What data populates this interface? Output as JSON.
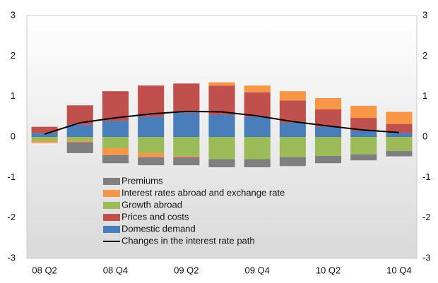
{
  "chart_data": {
    "type": "bar",
    "stacked": true,
    "categories": [
      "08 Q2",
      null,
      "08 Q4",
      null,
      "09 Q2",
      null,
      "09 Q4",
      null,
      "10 Q2",
      null,
      "10 Q4"
    ],
    "series": [
      {
        "name": "Domestic demand",
        "color": "#4a7ebb",
        "values": [
          0.1,
          0.3,
          0.4,
          0.5,
          0.6,
          0.55,
          0.5,
          0.35,
          0.25,
          0.15,
          0.1
        ]
      },
      {
        "name": "Prices and costs",
        "color": "#c0504d",
        "values": [
          0.15,
          0.48,
          0.73,
          0.77,
          0.72,
          0.72,
          0.6,
          0.55,
          0.43,
          0.32,
          0.22
        ]
      },
      {
        "name": "Growth abroad",
        "color": "#9bbb59",
        "values": [
          -0.1,
          -0.1,
          -0.28,
          -0.4,
          -0.47,
          -0.55,
          -0.55,
          -0.5,
          -0.47,
          -0.43,
          -0.35
        ]
      },
      {
        "name": "Interest rates abroad and exchange rate",
        "color": "#f79646",
        "values": [
          -0.05,
          -0.03,
          -0.17,
          -0.1,
          -0.03,
          0.08,
          0.17,
          0.23,
          0.28,
          0.3,
          0.3
        ]
      },
      {
        "name": "Premiums",
        "color": "#7f7f7f",
        "values": [
          0,
          -0.27,
          -0.2,
          -0.2,
          -0.2,
          -0.2,
          -0.2,
          -0.22,
          -0.18,
          -0.15,
          -0.13
        ]
      },
      {
        "name": "Changes in the interest rate path",
        "type": "line",
        "color": "#000000",
        "values": [
          0.07,
          0.35,
          0.47,
          0.57,
          0.63,
          0.62,
          0.52,
          0.38,
          0.27,
          0.17,
          0.11
        ]
      }
    ],
    "ylim": [
      -3,
      3
    ],
    "yticks": [
      -3,
      -2,
      -1,
      0,
      1,
      2,
      3
    ],
    "y2lim": [
      -3,
      3
    ],
    "y2ticks": [
      -3,
      -2,
      -1,
      0,
      1,
      2,
      3
    ],
    "grid": false
  }
}
